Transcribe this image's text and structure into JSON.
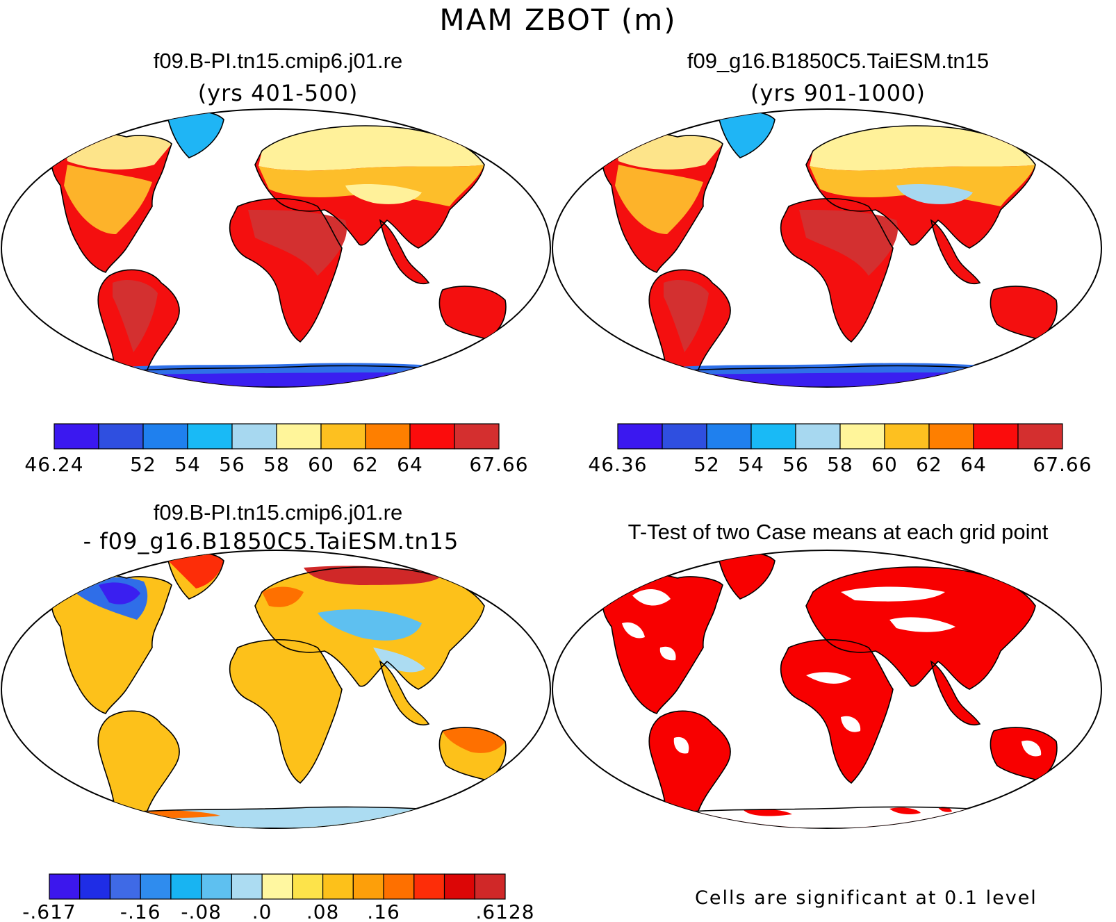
{
  "main_title": "MAM ZBOT (m)",
  "panels": [
    {
      "title": "f09.B-PI.tn15.cmip6.j01.re",
      "subtitle": "(yrs 401-500)",
      "colorbar": {
        "colors": [
          "#3b18f0",
          "#2f4fe0",
          "#1f80ee",
          "#19baf6",
          "#a7d8f0",
          "#fff59a",
          "#fdc020",
          "#fe7f00",
          "#fb0c0c",
          "#d42f2f"
        ],
        "labels": [
          "46.24",
          "52",
          "54",
          "56",
          "58",
          "60",
          "62",
          "64",
          "67.66"
        ],
        "label_positions": [
          0,
          2,
          3,
          4,
          5,
          6,
          7,
          8,
          10
        ]
      }
    },
    {
      "title": "f09_g16.B1850C5.TaiESM.tn15",
      "subtitle": "(yrs 901-1000)",
      "colorbar": {
        "colors": [
          "#3b18f0",
          "#2f4fe0",
          "#1f80ee",
          "#19baf6",
          "#a7d8f0",
          "#fff59a",
          "#fdc020",
          "#fe7f00",
          "#fb0c0c",
          "#d42f2f"
        ],
        "labels": [
          "46.36",
          "52",
          "54",
          "56",
          "58",
          "60",
          "62",
          "64",
          "67.66"
        ],
        "label_positions": [
          0,
          2,
          3,
          4,
          5,
          6,
          7,
          8,
          10
        ]
      }
    },
    {
      "title": "f09.B-PI.tn15.cmip6.j01.re",
      "subtitle": "- f09_g16.B1850C5.TaiESM.tn15",
      "colorbar": {
        "colors": [
          "#3c17ed",
          "#1f2de6",
          "#3f6ae6",
          "#2f8cee",
          "#18b4f2",
          "#5ec0f0",
          "#acdcf2",
          "#fff7a0",
          "#fde34a",
          "#fdc11a",
          "#fd9f0a",
          "#fe7000",
          "#fd2d08",
          "#dc0606",
          "#d02828"
        ],
        "labels": [
          "-.617",
          "-.16",
          "-.08",
          ".0",
          ".08",
          ".16",
          ".6128"
        ],
        "label_positions": [
          0,
          3,
          5,
          7,
          9,
          11,
          15
        ]
      }
    },
    {
      "title": "T-Test of two Case means at each grid point",
      "subtitle": ""
    }
  ],
  "significance_note": "Cells are significant at 0.1 level",
  "colors": {
    "significant": "#f80000",
    "land_outline": "#000000",
    "frame": "#000000"
  }
}
